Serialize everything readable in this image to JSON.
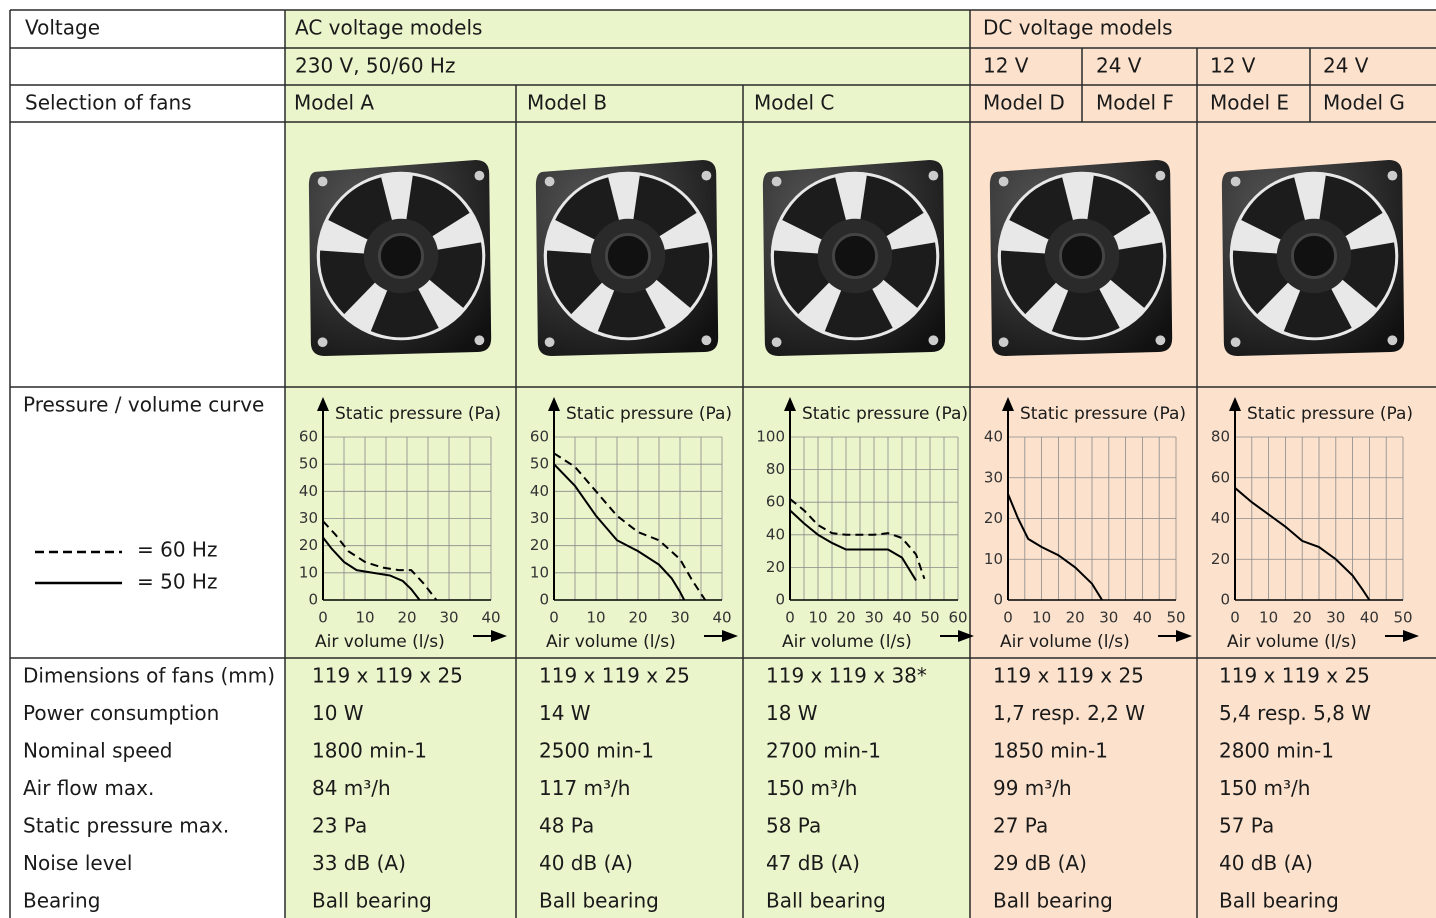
{
  "header": {
    "voltage_label": "Voltage",
    "ac_title": "AC voltage models",
    "dc_title": "DC voltage models",
    "ac_voltage": "230 V, 50/60 Hz",
    "dc_voltages": [
      "12 V",
      "24 V",
      "12 V",
      "24 V"
    ],
    "selection_label": "Selection of fans"
  },
  "models": [
    "Model A",
    "Model B",
    "Model C",
    "Model D",
    "Model F",
    "Model E",
    "Model G"
  ],
  "curve_label": "Pressure / volume curve",
  "legend": {
    "dashed": "= 60 Hz",
    "solid": "= 50 Hz"
  },
  "charts": [
    {
      "y_label": "Static pressure (Pa)",
      "x_label": "Air volume (l/s)",
      "xlim": [
        0,
        40
      ],
      "ylim": [
        0,
        60
      ],
      "xticks": [
        0,
        10,
        20,
        30,
        40
      ],
      "yticks": [
        0,
        10,
        20,
        30,
        40,
        50,
        60
      ],
      "grid": true,
      "series": [
        {
          "style": "dashed",
          "x": [
            0,
            3,
            6,
            10,
            14,
            18,
            21,
            24,
            27
          ],
          "y": [
            29,
            24,
            18,
            14,
            12,
            11,
            11,
            6,
            0
          ]
        },
        {
          "style": "solid",
          "x": [
            0,
            2,
            5,
            8,
            12,
            16,
            19,
            21,
            23
          ],
          "y": [
            23,
            19,
            14,
            11,
            10,
            9,
            7,
            4,
            0
          ]
        }
      ]
    },
    {
      "y_label": "Static pressure (Pa)",
      "x_label": "Air volume (l/s)",
      "xlim": [
        0,
        40
      ],
      "ylim": [
        0,
        60
      ],
      "xticks": [
        0,
        10,
        20,
        30,
        40
      ],
      "yticks": [
        0,
        10,
        20,
        30,
        40,
        50,
        60
      ],
      "grid": true,
      "series": [
        {
          "style": "dashed",
          "x": [
            0,
            5,
            10,
            15,
            20,
            25,
            30,
            33,
            36
          ],
          "y": [
            54,
            49,
            40,
            31,
            25,
            22,
            15,
            7,
            0
          ]
        },
        {
          "style": "solid",
          "x": [
            0,
            5,
            10,
            15,
            20,
            25,
            28,
            30,
            31
          ],
          "y": [
            50,
            42,
            31,
            22,
            18,
            13,
            8,
            3,
            0
          ]
        }
      ]
    },
    {
      "y_label": "Static pressure (Pa)",
      "x_label": "Air volume (l/s)",
      "xlim": [
        0,
        60
      ],
      "ylim": [
        0,
        100
      ],
      "xticks": [
        0,
        10,
        20,
        30,
        40,
        50,
        60
      ],
      "yticks": [
        0,
        20,
        40,
        60,
        80,
        100
      ],
      "grid": true,
      "series": [
        {
          "style": "dashed",
          "x": [
            0,
            5,
            10,
            15,
            20,
            30,
            35,
            40,
            45,
            48
          ],
          "y": [
            62,
            55,
            46,
            41,
            40,
            40,
            41,
            38,
            28,
            13
          ]
        },
        {
          "style": "solid",
          "x": [
            0,
            5,
            10,
            15,
            20,
            30,
            35,
            40,
            45
          ],
          "y": [
            55,
            47,
            40,
            35,
            31,
            31,
            31,
            26,
            12
          ]
        }
      ]
    },
    {
      "y_label": "Static pressure (Pa)",
      "x_label": "Air volume (l/s)",
      "xlim": [
        0,
        50
      ],
      "ylim": [
        0,
        40
      ],
      "xticks": [
        0,
        10,
        20,
        30,
        40,
        50
      ],
      "yticks": [
        0,
        10,
        20,
        30,
        40
      ],
      "grid": true,
      "series": [
        {
          "style": "solid",
          "x": [
            0,
            3,
            6,
            10,
            15,
            20,
            25,
            28
          ],
          "y": [
            26,
            20,
            15,
            13,
            11,
            8,
            4,
            0
          ]
        }
      ]
    },
    {
      "y_label": "Static pressure (Pa)",
      "x_label": "Air volume (l/s)",
      "xlim": [
        0,
        50
      ],
      "ylim": [
        0,
        80
      ],
      "xticks": [
        0,
        10,
        20,
        30,
        40,
        50
      ],
      "yticks": [
        0,
        20,
        40,
        60,
        80
      ],
      "grid": true,
      "series": [
        {
          "style": "solid",
          "x": [
            0,
            5,
            10,
            15,
            20,
            25,
            30,
            35,
            38,
            40
          ],
          "y": [
            55,
            48,
            42,
            36,
            29,
            26,
            20,
            12,
            5,
            0
          ]
        }
      ]
    }
  ],
  "specs": {
    "labels": [
      "Dimensions of fans (mm)",
      "Power consumption",
      "Nominal speed",
      "Air flow max.",
      "Static pressure max.",
      "Noise level",
      "Bearing"
    ],
    "rows": [
      [
        "119 x 119 x 25",
        "119 x 119 x 25",
        "119 x 119 x 38*",
        "119 x 119 x 25",
        "119 x 119 x 25"
      ],
      [
        "10 W",
        "14 W",
        "18 W",
        "1,7 resp. 2,2 W",
        "5,4 resp. 5,8 W"
      ],
      [
        "1800 min-1",
        "2500 min-1",
        "2700 min-1",
        "1850 min-1",
        "2800 min-1"
      ],
      [
        "84 m³/h",
        "117 m³/h",
        "150 m³/h",
        "99 m³/h",
        "150 m³/h"
      ],
      [
        "23 Pa",
        "48 Pa",
        "58 Pa",
        "27 Pa",
        "57 Pa"
      ],
      [
        "33 dB (A)",
        "40 dB (A)",
        "47 dB (A)",
        "29 dB (A)",
        "40 dB (A)"
      ],
      [
        "Ball bearing",
        "Ball bearing",
        "Ball bearing",
        "Ball bearing",
        "Ball bearing"
      ]
    ]
  }
}
